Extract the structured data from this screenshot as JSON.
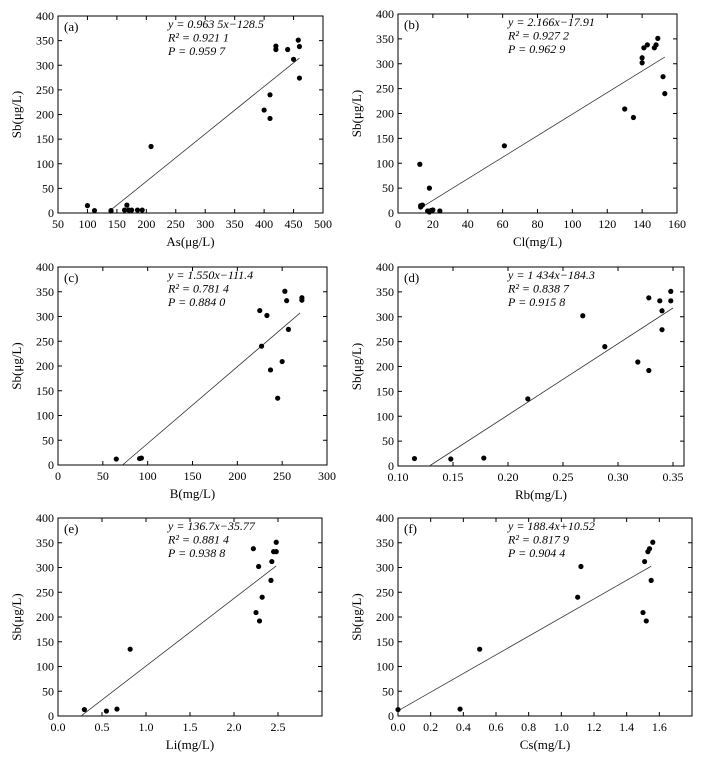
{
  "chart_data": [
    {
      "type": "scatter",
      "panel_label": "(a)",
      "xlabel": "As(μg/L)",
      "ylabel": "Sb(μg/L)",
      "xlim": [
        50,
        500
      ],
      "ylim": [
        0,
        400
      ],
      "xticks": [
        50,
        100,
        150,
        200,
        250,
        300,
        350,
        400,
        450,
        500
      ],
      "yticks": [
        0,
        50,
        100,
        150,
        200,
        250,
        300,
        350,
        400
      ],
      "fit": {
        "slope": 0.9635,
        "intercept": -128.5,
        "x_range": [
          140,
          460
        ]
      },
      "annotations": [
        "y = 0.963 5x−128.5",
        "R² = 0.921 1",
        "P = 0.959 7"
      ],
      "points": {
        "x": [
          100,
          112,
          140,
          140,
          163,
          167,
          170,
          175,
          185,
          193,
          208,
          400,
          410,
          410,
          420,
          420,
          440,
          450,
          458,
          460,
          460
        ],
        "y": [
          15,
          5,
          5,
          4,
          6,
          16,
          6,
          6,
          6,
          6,
          135,
          209,
          240,
          192,
          339,
          332,
          332,
          312,
          351,
          338,
          274
        ]
      }
    },
    {
      "type": "scatter",
      "panel_label": "(b)",
      "xlabel": "Cl(mg/L)",
      "ylabel": "Sb(μg/L)",
      "xlim": [
        0,
        160
      ],
      "ylim": [
        0,
        400
      ],
      "xticks": [
        0,
        20,
        40,
        60,
        80,
        100,
        120,
        140,
        160
      ],
      "yticks": [
        0,
        50,
        100,
        150,
        200,
        250,
        300,
        350,
        400
      ],
      "fit": {
        "slope": 2.166,
        "intercept": -17.91,
        "x_range": [
          14,
          153
        ]
      },
      "annotations": [
        "y = 2.166x−17.91",
        "R² = 0.927 2",
        "P = 0.962 9"
      ],
      "points": {
        "x": [
          12.5,
          13,
          13,
          14,
          17,
          18,
          18,
          19,
          20,
          24,
          61,
          130,
          135,
          140,
          140,
          141,
          143,
          147,
          148,
          149,
          152,
          153
        ],
        "y": [
          98,
          15,
          12,
          16,
          4,
          2,
          50,
          5,
          6,
          4,
          135,
          209,
          192,
          302,
          312,
          332,
          338,
          332,
          338,
          351,
          274,
          240
        ]
      }
    },
    {
      "type": "scatter",
      "panel_label": "(c)",
      "xlabel": "B(mg/L)",
      "ylabel": "Sb(μg/L)",
      "xlim": [
        0,
        300
      ],
      "ylim": [
        0,
        400
      ],
      "xticks": [
        0,
        50,
        100,
        150,
        200,
        250,
        300
      ],
      "yticks": [
        0,
        50,
        100,
        150,
        200,
        250,
        300,
        350,
        400
      ],
      "fit": {
        "slope": 1.55,
        "intercept": -111.4,
        "x_range": [
          72,
          270
        ]
      },
      "annotations": [
        "y = 1.550x−111.4",
        "R² = 0.781 4",
        "P = 0.884 0"
      ],
      "points": {
        "x": [
          65,
          91,
          93,
          225,
          227,
          233,
          237,
          245,
          250,
          253,
          255,
          257,
          272,
          272
        ],
        "y": [
          12,
          13,
          14,
          312,
          240,
          302,
          192,
          135,
          209,
          351,
          332,
          274,
          338,
          333
        ]
      }
    },
    {
      "type": "scatter",
      "panel_label": "(d)",
      "xlabel": "Rb(mg/L)",
      "ylabel": "Sb(μg/L)",
      "xlim": [
        0.1,
        0.36
      ],
      "ylim": [
        0,
        400
      ],
      "xticks": [
        0.1,
        0.15,
        0.2,
        0.25,
        0.3,
        0.35
      ],
      "yticks": [
        0,
        50,
        100,
        150,
        200,
        250,
        300,
        350,
        400
      ],
      "fit": {
        "slope": 1434,
        "intercept": -184.3,
        "x_range": [
          0.1285,
          0.35
        ]
      },
      "annotations": [
        "y = 1 434x−184.3",
        "R² = 0.838 7",
        "P = 0.915 8"
      ],
      "points": {
        "x": [
          0.115,
          0.148,
          0.178,
          0.218,
          0.268,
          0.288,
          0.318,
          0.328,
          0.328,
          0.338,
          0.34,
          0.34,
          0.348,
          0.348
        ],
        "y": [
          15,
          14,
          16,
          135,
          302,
          240,
          209,
          192,
          338,
          332,
          312,
          274,
          351,
          332
        ]
      }
    },
    {
      "type": "scatter",
      "panel_label": "(e)",
      "xlabel": "Li(mg/L)",
      "ylabel": "Sb(μg/L)",
      "xlim": [
        0,
        3
      ],
      "ylim": [
        0,
        400
      ],
      "xticks": [
        0.0,
        0.5,
        1.0,
        1.5,
        2.0,
        2.5
      ],
      "yticks": [
        0,
        50,
        100,
        150,
        200,
        250,
        300,
        350,
        400
      ],
      "fit": {
        "slope": 136.7,
        "intercept": -35.77,
        "x_range": [
          0.27,
          2.48
        ]
      },
      "annotations": [
        "y = 136.7x−35.77",
        "R² = 0.881 4",
        "P = 0.938 8"
      ],
      "points": {
        "x": [
          0.3,
          0.55,
          0.67,
          0.82,
          2.22,
          2.25,
          2.28,
          2.29,
          2.32,
          2.42,
          2.43,
          2.45,
          2.48,
          2.48
        ],
        "y": [
          13,
          10,
          14,
          135,
          338,
          209,
          302,
          192,
          240,
          274,
          312,
          332,
          351,
          332
        ]
      }
    },
    {
      "type": "scatter",
      "panel_label": "(f)",
      "xlabel": "Cs(mg/L)",
      "ylabel": "Sb(μg/L)",
      "xlim": [
        0,
        1.8
      ],
      "ylim": [
        0,
        400
      ],
      "xticks": [
        0.0,
        0.2,
        0.4,
        0.6,
        0.8,
        1.0,
        1.2,
        1.4,
        1.6
      ],
      "yticks": [
        0,
        50,
        100,
        150,
        200,
        250,
        300,
        350,
        400
      ],
      "fit": {
        "slope": 188.4,
        "intercept": 10.52,
        "x_range": [
          0.0,
          1.55
        ]
      },
      "annotations": [
        "y = 188.4x+10.52",
        "R² = 0.817 9",
        "P = 0.904 4"
      ],
      "points": {
        "x": [
          0.0,
          0.38,
          0.5,
          1.1,
          1.12,
          1.5,
          1.51,
          1.52,
          1.53,
          1.54,
          1.55,
          1.56
        ],
        "y": [
          13,
          14,
          135,
          240,
          302,
          209,
          312,
          192,
          332,
          338,
          274,
          351
        ]
      }
    }
  ]
}
